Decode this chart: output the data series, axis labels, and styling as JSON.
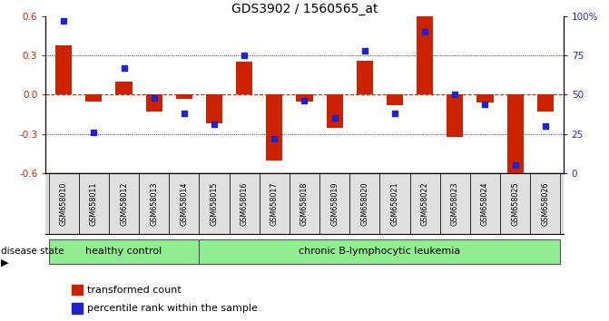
{
  "title": "GDS3902 / 1560565_at",
  "samples": [
    "GSM658010",
    "GSM658011",
    "GSM658012",
    "GSM658013",
    "GSM658014",
    "GSM658015",
    "GSM658016",
    "GSM658017",
    "GSM658018",
    "GSM658019",
    "GSM658020",
    "GSM658021",
    "GSM658022",
    "GSM658023",
    "GSM658024",
    "GSM658025",
    "GSM658026"
  ],
  "red_bars": [
    0.38,
    -0.05,
    0.1,
    -0.13,
    -0.03,
    -0.22,
    0.25,
    -0.5,
    -0.05,
    -0.25,
    0.26,
    -0.08,
    0.6,
    -0.32,
    -0.06,
    -0.62,
    -0.13
  ],
  "blue_squares_pct": [
    97,
    26,
    67,
    48,
    38,
    31,
    75,
    22,
    46,
    35,
    78,
    38,
    90,
    50,
    44,
    5,
    30
  ],
  "group_boundary": 5,
  "healthy_label": "healthy control",
  "cll_label": "chronic B-lymphocytic leukemia",
  "group_color": "#90ee90",
  "ylim_left": [
    -0.6,
    0.6
  ],
  "ylim_right": [
    0,
    100
  ],
  "yticks_left": [
    -0.6,
    -0.3,
    0.0,
    0.3,
    0.6
  ],
  "yticks_right": [
    0,
    25,
    50,
    75,
    100
  ],
  "ytick_labels_right": [
    "0",
    "25",
    "50",
    "75",
    "100%"
  ],
  "hlines_dotted": [
    -0.3,
    0.3
  ],
  "red_color": "#cc2200",
  "blue_color": "#2222cc",
  "bar_width": 0.55,
  "disease_state_label": "disease state",
  "legend_items": [
    {
      "color": "#cc2200",
      "label": "transformed count",
      "marker": "s"
    },
    {
      "color": "#2222cc",
      "label": "percentile rank within the sample",
      "marker": "s"
    }
  ]
}
